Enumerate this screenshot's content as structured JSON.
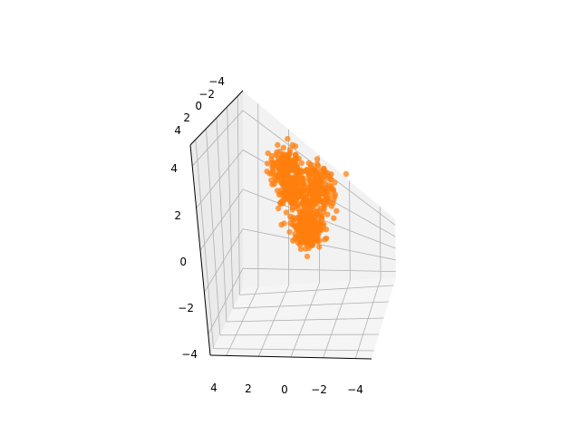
{
  "chart_data": {
    "type": "scatter",
    "projection": "3d",
    "title": "",
    "xlabel": "",
    "ylabel": "",
    "zlabel": "",
    "grid": true,
    "marker_color": "#ff7f0e",
    "x_ticks": [
      "4",
      "2",
      "0",
      "−2",
      "−4"
    ],
    "y_ticks": [
      "−4",
      "−2",
      "0",
      "2",
      "4"
    ],
    "z_ticks": [
      "−4",
      "−2",
      "0",
      "2",
      "4"
    ],
    "xlim": [
      -5,
      5
    ],
    "ylim": [
      -5,
      5
    ],
    "zlim": [
      -5,
      5
    ],
    "series": [
      {
        "clusters": [
          {
            "points": 150,
            "center": [
              1.0,
              -0.5,
              3.2
            ],
            "spread": 0.45
          },
          {
            "points": 150,
            "center": [
              0.6,
              -0.3,
              1.9
            ],
            "spread": 0.4
          },
          {
            "points": 220,
            "center": [
              -0.9,
              -0.6,
              2.2
            ],
            "spread": 0.5
          },
          {
            "points": 180,
            "center": [
              -0.1,
              -0.2,
              0.3
            ],
            "spread": 0.45
          },
          {
            "points": 90,
            "center": [
              -0.2,
              0.0,
              -0.4
            ],
            "spread": 0.35
          }
        ]
      }
    ]
  }
}
